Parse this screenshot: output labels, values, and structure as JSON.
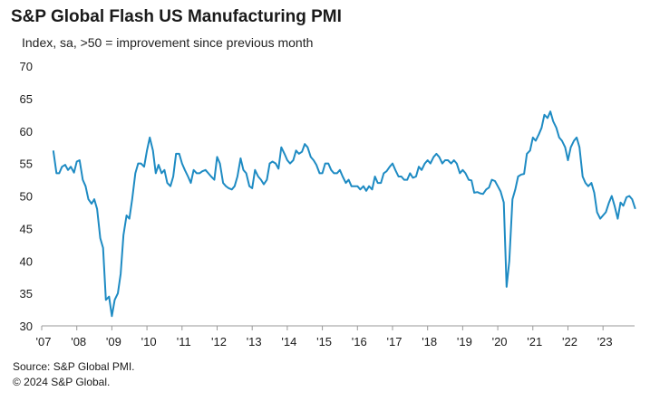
{
  "chart_data": {
    "type": "line",
    "title": "S&P Global Flash US Manufacturing PMI",
    "subtitle": "Index, sa, >50 = improvement  since previous month",
    "xlabel": "",
    "ylabel": "",
    "ylim": [
      30,
      70
    ],
    "yticks": [
      30,
      35,
      40,
      45,
      50,
      55,
      60,
      65,
      70
    ],
    "xlim": [
      2007.3,
      2023.9
    ],
    "xtick_labels": [
      "'07",
      "'08",
      "'09",
      "'10",
      "'11",
      "'12",
      "'13",
      "'14",
      "'15",
      "'16",
      "'17",
      "'18",
      "'19",
      "'20",
      "'21",
      "'22",
      "'23"
    ],
    "grid": false,
    "color": "#1e8bc3",
    "series": [
      {
        "points": [
          [
            2007.33,
            57.0
          ],
          [
            2007.42,
            53.5
          ],
          [
            2007.5,
            53.5
          ],
          [
            2007.58,
            54.5
          ],
          [
            2007.67,
            54.8
          ],
          [
            2007.75,
            54.0
          ],
          [
            2007.83,
            54.5
          ],
          [
            2007.92,
            53.6
          ],
          [
            2008.0,
            55.3
          ],
          [
            2008.08,
            55.5
          ],
          [
            2008.17,
            52.5
          ],
          [
            2008.25,
            51.5
          ],
          [
            2008.33,
            49.5
          ],
          [
            2008.42,
            48.8
          ],
          [
            2008.5,
            49.5
          ],
          [
            2008.58,
            48.0
          ],
          [
            2008.67,
            43.5
          ],
          [
            2008.75,
            42.0
          ],
          [
            2008.83,
            34.0
          ],
          [
            2008.92,
            34.5
          ],
          [
            2009.0,
            31.5
          ],
          [
            2009.08,
            34.0
          ],
          [
            2009.17,
            35.0
          ],
          [
            2009.25,
            38.0
          ],
          [
            2009.33,
            44.0
          ],
          [
            2009.42,
            47.0
          ],
          [
            2009.5,
            46.5
          ],
          [
            2009.58,
            49.5
          ],
          [
            2009.67,
            53.5
          ],
          [
            2009.75,
            55.0
          ],
          [
            2009.83,
            55.0
          ],
          [
            2009.92,
            54.5
          ],
          [
            2010.0,
            57.0
          ],
          [
            2010.08,
            59.0
          ],
          [
            2010.17,
            57.0
          ],
          [
            2010.25,
            53.5
          ],
          [
            2010.33,
            54.8
          ],
          [
            2010.42,
            53.5
          ],
          [
            2010.5,
            54.0
          ],
          [
            2010.58,
            52.0
          ],
          [
            2010.67,
            51.5
          ],
          [
            2010.75,
            53.0
          ],
          [
            2010.83,
            56.5
          ],
          [
            2010.92,
            56.5
          ],
          [
            2011.0,
            55.0
          ],
          [
            2011.08,
            54.0
          ],
          [
            2011.17,
            53.0
          ],
          [
            2011.25,
            52.0
          ],
          [
            2011.33,
            54.0
          ],
          [
            2011.42,
            53.5
          ],
          [
            2011.5,
            53.5
          ],
          [
            2011.58,
            53.8
          ],
          [
            2011.67,
            54.0
          ],
          [
            2011.75,
            53.5
          ],
          [
            2011.83,
            53.0
          ],
          [
            2011.92,
            52.5
          ],
          [
            2012.0,
            56.0
          ],
          [
            2012.08,
            55.0
          ],
          [
            2012.17,
            52.0
          ],
          [
            2012.25,
            51.5
          ],
          [
            2012.33,
            51.2
          ],
          [
            2012.42,
            51.0
          ],
          [
            2012.5,
            51.5
          ],
          [
            2012.58,
            53.0
          ],
          [
            2012.67,
            55.8
          ],
          [
            2012.75,
            54.0
          ],
          [
            2012.83,
            53.5
          ],
          [
            2012.92,
            51.5
          ],
          [
            2013.0,
            51.2
          ],
          [
            2013.08,
            54.0
          ],
          [
            2013.17,
            53.0
          ],
          [
            2013.25,
            52.5
          ],
          [
            2013.33,
            51.8
          ],
          [
            2013.42,
            52.5
          ],
          [
            2013.5,
            55.0
          ],
          [
            2013.58,
            55.3
          ],
          [
            2013.67,
            55.0
          ],
          [
            2013.75,
            54.2
          ],
          [
            2013.83,
            57.5
          ],
          [
            2013.92,
            56.5
          ],
          [
            2014.0,
            55.5
          ],
          [
            2014.08,
            55.0
          ],
          [
            2014.17,
            55.5
          ],
          [
            2014.25,
            57.0
          ],
          [
            2014.33,
            56.5
          ],
          [
            2014.42,
            56.8
          ],
          [
            2014.5,
            58.0
          ],
          [
            2014.58,
            57.5
          ],
          [
            2014.67,
            56.0
          ],
          [
            2014.75,
            55.5
          ],
          [
            2014.83,
            54.8
          ],
          [
            2014.92,
            53.5
          ],
          [
            2015.0,
            53.5
          ],
          [
            2015.08,
            55.0
          ],
          [
            2015.17,
            55.0
          ],
          [
            2015.25,
            54.0
          ],
          [
            2015.33,
            53.5
          ],
          [
            2015.42,
            53.5
          ],
          [
            2015.5,
            54.0
          ],
          [
            2015.58,
            53.0
          ],
          [
            2015.67,
            52.0
          ],
          [
            2015.75,
            52.5
          ],
          [
            2015.83,
            51.5
          ],
          [
            2015.92,
            51.5
          ],
          [
            2016.0,
            51.5
          ],
          [
            2016.08,
            51.0
          ],
          [
            2016.17,
            51.5
          ],
          [
            2016.25,
            50.8
          ],
          [
            2016.33,
            51.5
          ],
          [
            2016.42,
            51.0
          ],
          [
            2016.5,
            53.0
          ],
          [
            2016.58,
            52.0
          ],
          [
            2016.67,
            52.0
          ],
          [
            2016.75,
            53.5
          ],
          [
            2016.83,
            53.8
          ],
          [
            2016.92,
            54.5
          ],
          [
            2017.0,
            55.0
          ],
          [
            2017.08,
            54.0
          ],
          [
            2017.17,
            53.0
          ],
          [
            2017.25,
            53.0
          ],
          [
            2017.33,
            52.5
          ],
          [
            2017.42,
            52.5
          ],
          [
            2017.5,
            53.5
          ],
          [
            2017.58,
            52.8
          ],
          [
            2017.67,
            53.0
          ],
          [
            2017.75,
            54.5
          ],
          [
            2017.83,
            54.0
          ],
          [
            2017.92,
            55.0
          ],
          [
            2018.0,
            55.5
          ],
          [
            2018.08,
            55.0
          ],
          [
            2018.17,
            56.0
          ],
          [
            2018.25,
            56.5
          ],
          [
            2018.33,
            56.0
          ],
          [
            2018.42,
            55.0
          ],
          [
            2018.5,
            55.5
          ],
          [
            2018.58,
            55.5
          ],
          [
            2018.67,
            55.0
          ],
          [
            2018.75,
            55.5
          ],
          [
            2018.83,
            55.0
          ],
          [
            2018.92,
            53.5
          ],
          [
            2019.0,
            54.0
          ],
          [
            2019.08,
            53.5
          ],
          [
            2019.17,
            52.5
          ],
          [
            2019.25,
            52.4
          ],
          [
            2019.33,
            50.5
          ],
          [
            2019.42,
            50.6
          ],
          [
            2019.5,
            50.4
          ],
          [
            2019.58,
            50.3
          ],
          [
            2019.67,
            51.0
          ],
          [
            2019.75,
            51.3
          ],
          [
            2019.83,
            52.5
          ],
          [
            2019.92,
            52.3
          ],
          [
            2020.0,
            51.5
          ],
          [
            2020.08,
            50.7
          ],
          [
            2020.17,
            49.0
          ],
          [
            2020.25,
            36.0
          ],
          [
            2020.33,
            40.0
          ],
          [
            2020.42,
            49.5
          ],
          [
            2020.5,
            51.0
          ],
          [
            2020.58,
            53.0
          ],
          [
            2020.67,
            53.3
          ],
          [
            2020.75,
            53.4
          ],
          [
            2020.83,
            56.5
          ],
          [
            2020.92,
            57.0
          ],
          [
            2021.0,
            59.0
          ],
          [
            2021.08,
            58.5
          ],
          [
            2021.17,
            59.5
          ],
          [
            2021.25,
            60.5
          ],
          [
            2021.33,
            62.5
          ],
          [
            2021.42,
            62.0
          ],
          [
            2021.5,
            63.0
          ],
          [
            2021.58,
            61.5
          ],
          [
            2021.67,
            60.5
          ],
          [
            2021.75,
            59.0
          ],
          [
            2021.83,
            58.5
          ],
          [
            2021.92,
            57.5
          ],
          [
            2022.0,
            55.5
          ],
          [
            2022.08,
            57.5
          ],
          [
            2022.17,
            58.5
          ],
          [
            2022.25,
            59.0
          ],
          [
            2022.33,
            57.5
          ],
          [
            2022.42,
            53.0
          ],
          [
            2022.5,
            52.0
          ],
          [
            2022.58,
            51.5
          ],
          [
            2022.67,
            52.0
          ],
          [
            2022.75,
            50.5
          ],
          [
            2022.83,
            47.5
          ],
          [
            2022.92,
            46.5
          ],
          [
            2023.0,
            47.0
          ],
          [
            2023.08,
            47.5
          ],
          [
            2023.17,
            49.0
          ],
          [
            2023.25,
            50.0
          ],
          [
            2023.33,
            48.5
          ],
          [
            2023.42,
            46.5
          ],
          [
            2023.5,
            49.0
          ],
          [
            2023.58,
            48.5
          ],
          [
            2023.67,
            49.8
          ],
          [
            2023.75,
            50.0
          ],
          [
            2023.83,
            49.5
          ],
          [
            2023.92,
            48.0
          ]
        ]
      }
    ]
  },
  "footer": {
    "source": "Source: S&P Global PMI.",
    "copyright": "© 2024 S&P Global."
  }
}
